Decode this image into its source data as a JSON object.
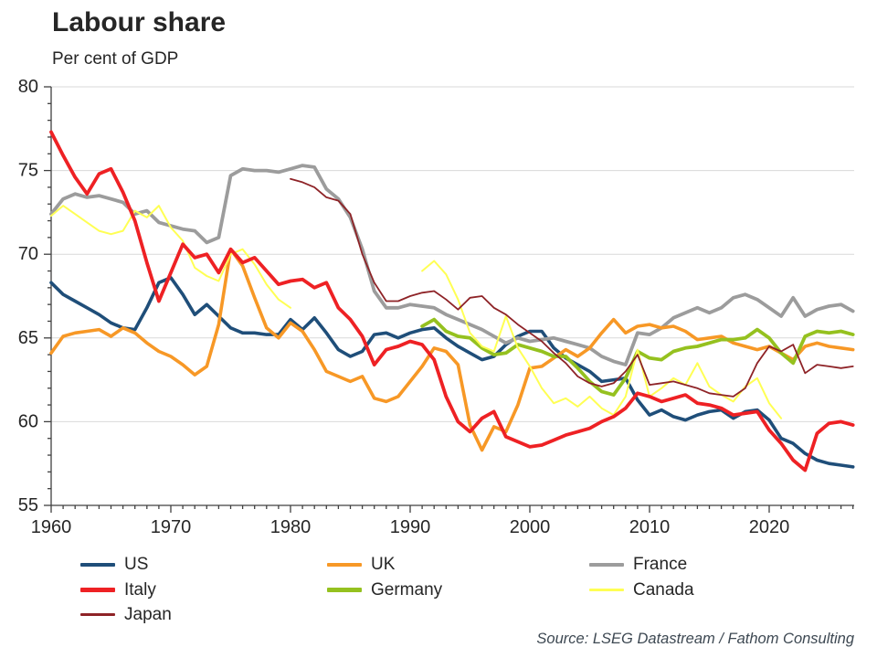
{
  "header": {
    "title": "Labour share",
    "subtitle": "Per cent of GDP"
  },
  "source": {
    "text": "Source: LSEG Datastream / Fathom Consulting"
  },
  "legend": {
    "columns": [
      [
        "US",
        "Italy",
        "Japan"
      ],
      [
        "UK",
        "Germany"
      ],
      [
        "France",
        "Canada"
      ]
    ]
  },
  "colors": {
    "grid": "#d9d9d9",
    "axis": "#404040",
    "text": "#262626"
  },
  "chart_data": {
    "type": "line",
    "title": "Labour share",
    "subtitle": "Per cent of GDP",
    "xlabel": "",
    "ylabel": "Per cent of GDP",
    "xlim": [
      1960,
      2027
    ],
    "ylim": [
      55,
      80
    ],
    "x_major_ticks": [
      1960,
      1970,
      1980,
      1990,
      2000,
      2010,
      2020
    ],
    "y_major_ticks": [
      55,
      60,
      65,
      70,
      75,
      80
    ],
    "grid": "horizontal",
    "legend_position": "bottom",
    "draw_order": [
      "US",
      "France",
      "UK",
      "Germany",
      "Canada",
      "Japan",
      "Italy"
    ],
    "series": [
      {
        "name": "US",
        "color": "#1f4e79",
        "width": 3.6,
        "start_year": 1960,
        "values": [
          68.3,
          67.6,
          67.2,
          66.8,
          66.4,
          65.9,
          65.6,
          65.5,
          66.8,
          68.3,
          68.6,
          67.6,
          66.4,
          67.0,
          66.3,
          65.6,
          65.3,
          65.3,
          65.2,
          65.2,
          66.1,
          65.5,
          66.2,
          65.3,
          64.3,
          63.9,
          64.2,
          65.2,
          65.3,
          65.0,
          65.3,
          65.5,
          65.6,
          65.0,
          64.5,
          64.1,
          63.7,
          63.9,
          64.6,
          65.1,
          65.4,
          65.4,
          64.4,
          63.8,
          63.4,
          63.0,
          62.4,
          62.5,
          62.6,
          61.3,
          60.4,
          60.7,
          60.3,
          60.1,
          60.4,
          60.6,
          60.7,
          60.2,
          60.6,
          60.7,
          60.1,
          59.0,
          58.7,
          58.1,
          57.7,
          57.5,
          57.4,
          57.3
        ]
      },
      {
        "name": "UK",
        "color": "#f79826",
        "width": 3.6,
        "start_year": 1960,
        "values": [
          64.1,
          65.1,
          65.3,
          65.4,
          65.5,
          65.1,
          65.6,
          65.3,
          64.7,
          64.2,
          63.9,
          63.4,
          62.8,
          63.3,
          65.8,
          70.3,
          69.3,
          67.4,
          65.6,
          65.0,
          65.9,
          65.4,
          64.3,
          63.0,
          62.7,
          62.4,
          62.7,
          61.4,
          61.2,
          61.5,
          62.4,
          63.3,
          64.4,
          64.2,
          63.4,
          59.8,
          58.3,
          59.7,
          59.4,
          61.0,
          63.2,
          63.3,
          63.8,
          64.3,
          63.9,
          64.4,
          65.3,
          66.1,
          65.3,
          65.7,
          65.8,
          65.6,
          65.7,
          65.4,
          64.9,
          65.0,
          65.1,
          64.7,
          64.5,
          64.3,
          64.5,
          64.1,
          63.7,
          64.5,
          64.7,
          64.5,
          64.4,
          64.3
        ]
      },
      {
        "name": "France",
        "color": "#9c9c9c",
        "width": 3.8,
        "start_year": 1960,
        "values": [
          72.4,
          73.3,
          73.6,
          73.4,
          73.5,
          73.3,
          73.1,
          72.4,
          72.6,
          71.9,
          71.7,
          71.5,
          71.4,
          70.7,
          71.0,
          74.7,
          75.1,
          75.0,
          75.0,
          74.9,
          75.1,
          75.3,
          75.2,
          73.9,
          73.3,
          72.2,
          70.3,
          67.8,
          66.8,
          66.8,
          67.0,
          66.9,
          66.8,
          66.4,
          66.1,
          65.8,
          65.5,
          65.1,
          64.7,
          65.0,
          64.8,
          64.9,
          65.0,
          64.8,
          64.6,
          64.4,
          63.9,
          63.6,
          63.4,
          65.3,
          65.2,
          65.6,
          66.2,
          66.5,
          66.8,
          66.5,
          66.8,
          67.4,
          67.6,
          67.3,
          66.8,
          66.3,
          67.4,
          66.3,
          66.7,
          66.9,
          67.0,
          66.6
        ]
      },
      {
        "name": "Italy",
        "color": "#ee2124",
        "width": 3.8,
        "start_year": 1960,
        "values": [
          77.3,
          75.9,
          74.6,
          73.6,
          74.8,
          75.1,
          73.7,
          72.0,
          69.5,
          67.2,
          68.9,
          70.6,
          69.8,
          70.0,
          68.9,
          70.3,
          69.5,
          69.8,
          69.0,
          68.2,
          68.4,
          68.5,
          68.0,
          68.3,
          66.8,
          66.1,
          65.1,
          63.4,
          64.3,
          64.5,
          64.8,
          64.6,
          63.7,
          61.5,
          60.0,
          59.4,
          60.2,
          60.6,
          59.1,
          58.8,
          58.5,
          58.6,
          58.9,
          59.2,
          59.4,
          59.6,
          60.0,
          60.3,
          60.8,
          61.7,
          61.5,
          61.2,
          61.4,
          61.6,
          61.1,
          61.0,
          60.8,
          60.4,
          60.5,
          60.6,
          59.5,
          58.7,
          57.7,
          57.1,
          59.3,
          59.9,
          60.0,
          59.8
        ]
      },
      {
        "name": "Germany",
        "color": "#95c11f",
        "width": 3.8,
        "start_year": 1991,
        "values": [
          65.7,
          66.1,
          65.4,
          65.1,
          65.0,
          64.4,
          64.0,
          64.1,
          64.6,
          64.4,
          64.2,
          63.9,
          63.9,
          63.2,
          62.4,
          61.8,
          61.6,
          62.6,
          64.2,
          63.8,
          63.7,
          64.2,
          64.4,
          64.5,
          64.7,
          64.9,
          64.9,
          65.0,
          65.5,
          65.0,
          64.1,
          63.5,
          65.1,
          65.4,
          65.3,
          65.4,
          65.2
        ]
      },
      {
        "name": "Canada",
        "color": "#ffff54",
        "width": 2.0,
        "start_year": 1960,
        "values": [
          72.3,
          72.9,
          72.4,
          71.9,
          71.4,
          71.2,
          71.4,
          72.6,
          72.2,
          72.9,
          71.6,
          70.8,
          69.2,
          68.7,
          68.4,
          70.0,
          70.3,
          69.4,
          68.2,
          67.3,
          66.8,
          null,
          null,
          null,
          null,
          null,
          null,
          null,
          null,
          null,
          null,
          69.0,
          69.6,
          68.8,
          67.3,
          65.3,
          64.5,
          64.2,
          66.3,
          64.4,
          63.3,
          62.0,
          61.1,
          61.4,
          60.9,
          61.5,
          60.8,
          60.4,
          61.5,
          64.3,
          61.5,
          62.0,
          62.6,
          62.2,
          63.5,
          62.1,
          61.6,
          61.2,
          62.1,
          62.6,
          61.1,
          60.2
        ]
      },
      {
        "name": "Japan",
        "color": "#8e2327",
        "width": 1.8,
        "start_year": 1980,
        "values": [
          74.5,
          74.3,
          74.0,
          73.4,
          73.2,
          72.4,
          70.0,
          68.3,
          67.2,
          67.2,
          67.5,
          67.7,
          67.8,
          67.3,
          66.7,
          67.4,
          67.5,
          66.8,
          66.4,
          65.8,
          65.3,
          64.8,
          64.1,
          63.5,
          62.7,
          62.3,
          62.1,
          62.3,
          63.0,
          64.0,
          62.2,
          62.3,
          62.4,
          62.2,
          62.0,
          61.7,
          61.6,
          61.5,
          62.0,
          63.5,
          64.5,
          64.2,
          64.6,
          62.9,
          63.4,
          63.3,
          63.2,
          63.3
        ]
      }
    ]
  }
}
